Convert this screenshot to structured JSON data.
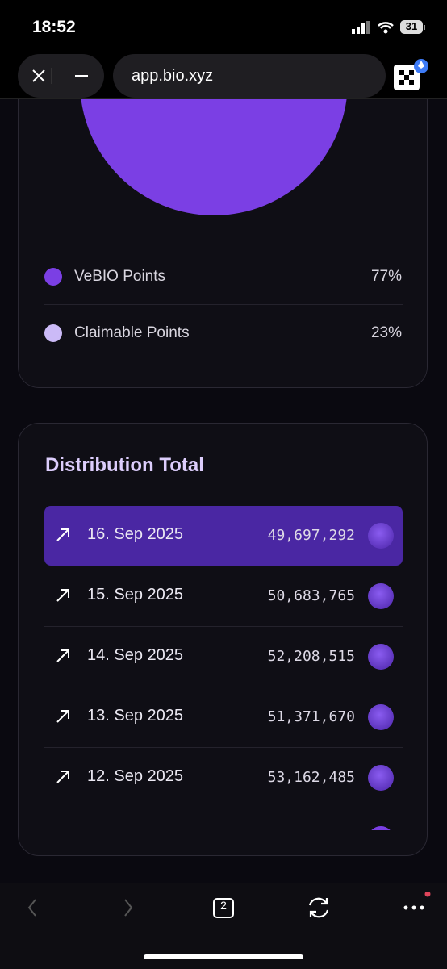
{
  "status_bar": {
    "time": "18:52",
    "battery": "31"
  },
  "browser": {
    "url": "app.bio.xyz",
    "tab_count": "2"
  },
  "legend": [
    {
      "label": "VeBIO Points",
      "value": "77%",
      "color": "#7b3fe4"
    },
    {
      "label": "Claimable Points",
      "value": "23%",
      "color": "#cbbaf7"
    }
  ],
  "distribution": {
    "title": "Distribution Total",
    "rows": [
      {
        "date": "16. Sep 2025",
        "amount": "49,697,292"
      },
      {
        "date": "15. Sep 2025",
        "amount": "50,683,765"
      },
      {
        "date": "14. Sep 2025",
        "amount": "52,208,515"
      },
      {
        "date": "13. Sep 2025",
        "amount": "51,371,670"
      },
      {
        "date": "12. Sep 2025",
        "amount": "53,162,485"
      }
    ]
  }
}
